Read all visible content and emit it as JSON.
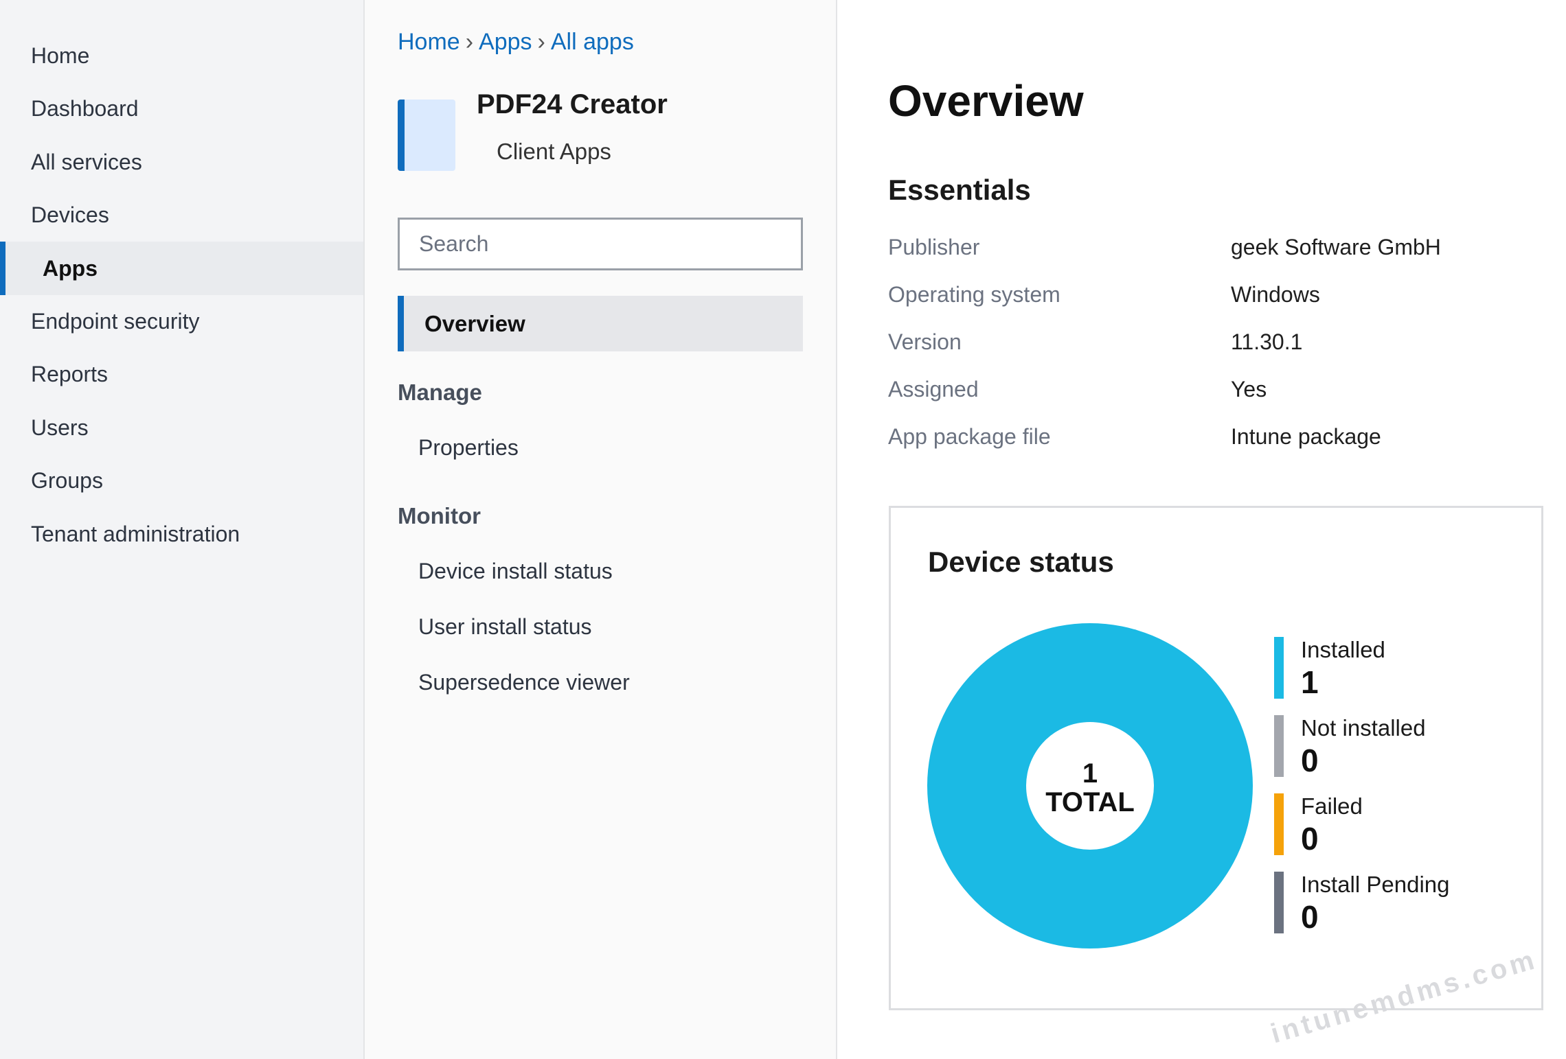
{
  "nav": {
    "items": [
      "Home",
      "Dashboard",
      "All services",
      "Devices",
      "Apps",
      "Endpoint security",
      "Reports",
      "Users",
      "Groups",
      "Tenant administration"
    ],
    "active_index": 4
  },
  "breadcrumb": {
    "items": [
      "Home",
      "Apps",
      "All apps"
    ],
    "separator": "›"
  },
  "app": {
    "name": "PDF24 Creator",
    "subtitle": "Client Apps"
  },
  "search": {
    "placeholder": "Search"
  },
  "menu": {
    "overview": "Overview",
    "sections": [
      {
        "title": "Manage",
        "items": [
          "Properties"
        ]
      },
      {
        "title": "Monitor",
        "items": [
          "Device install status",
          "User install status",
          "Supersedence viewer"
        ]
      }
    ]
  },
  "overview": {
    "title": "Overview",
    "essentials": {
      "title": "Essentials",
      "rows": [
        {
          "label": "Publisher",
          "value": "geek Software GmbH"
        },
        {
          "label": "Operating system",
          "value": "Windows"
        },
        {
          "label": "Version",
          "value": "11.30.1"
        },
        {
          "label": "Assigned",
          "value": "Yes"
        },
        {
          "label": "App package file",
          "value": "Intune package"
        }
      ]
    }
  },
  "chart_data": {
    "type": "donut",
    "title": "Device status",
    "total": 1,
    "total_label": "TOTAL",
    "series": [
      {
        "name": "Installed",
        "color": "#1bbae4",
        "value": 1
      },
      {
        "name": "Not installed",
        "color": "#a3a6ad",
        "value": 0
      },
      {
        "name": "Failed",
        "color": "#f5a20a",
        "value": 0
      },
      {
        "name": "Install Pending",
        "color": "#6b7280",
        "value": 0
      }
    ]
  },
  "watermark": "intunemdms.com"
}
